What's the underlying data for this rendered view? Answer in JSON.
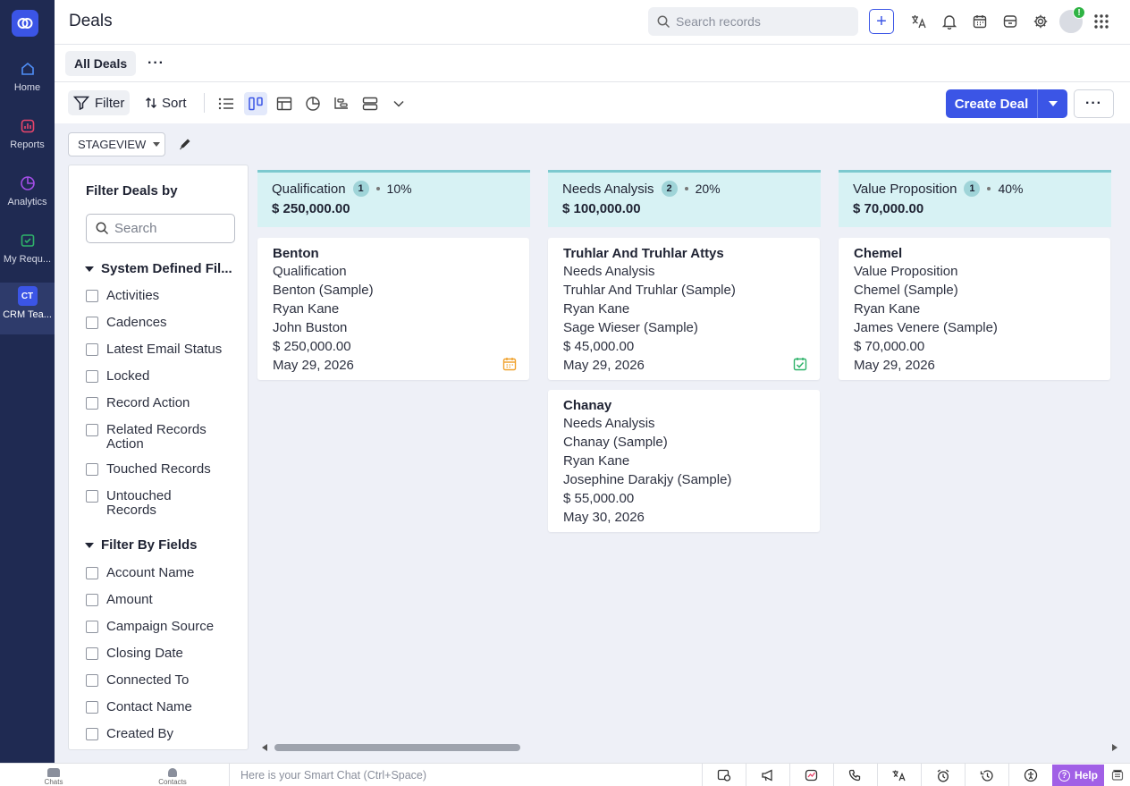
{
  "app": {
    "title": "Deals"
  },
  "rail": {
    "items": [
      {
        "label": "Home"
      },
      {
        "label": "Reports"
      },
      {
        "label": "Analytics"
      },
      {
        "label": "My Requ..."
      },
      {
        "label": "CRM Tea...",
        "badge": "CT"
      }
    ]
  },
  "header": {
    "search_placeholder": "Search records",
    "notification_badge": "!"
  },
  "tabs": {
    "all_deals": "All Deals"
  },
  "toolbar": {
    "filter_label": "Filter",
    "sort_label": "Sort",
    "create_label": "Create Deal"
  },
  "view": {
    "stageview_label": "STAGEVIEW"
  },
  "filter_panel": {
    "title": "Filter Deals by",
    "search_placeholder": "Search",
    "system_section": "System Defined Fil...",
    "system_items": [
      "Activities",
      "Cadences",
      "Latest Email Status",
      "Locked",
      "Record Action",
      "Related Records Action",
      "Touched Records",
      "Untouched Records"
    ],
    "fields_section": "Filter By Fields",
    "field_items": [
      "Account Name",
      "Amount",
      "Campaign Source",
      "Closing Date",
      "Connected To",
      "Contact Name",
      "Created By"
    ]
  },
  "columns": [
    {
      "name": "Qualification",
      "count": "1",
      "percent": "10%",
      "total": "$ 250,000.00"
    },
    {
      "name": "Needs Analysis",
      "count": "2",
      "percent": "20%",
      "total": "$ 100,000.00"
    },
    {
      "name": "Value Proposition",
      "count": "1",
      "percent": "40%",
      "total": "$ 70,000.00"
    }
  ],
  "cards": {
    "benton": {
      "name": "Benton",
      "stage": "Qualification",
      "account": "Benton (Sample)",
      "owner": "Ryan Kane",
      "contact": "John Buston",
      "amount": "$ 250,000.00",
      "date": "May 29, 2026",
      "icon": "calendar-icon"
    },
    "truhlar": {
      "name": "Truhlar And Truhlar Attys",
      "stage": "Needs Analysis",
      "account": "Truhlar And Truhlar (Sample)",
      "owner": "Ryan Kane",
      "contact": "Sage Wieser (Sample)",
      "amount": "$ 45,000.00",
      "date": "May 29, 2026",
      "icon": "task-check-icon"
    },
    "chanay": {
      "name": "Chanay",
      "stage": "Needs Analysis",
      "account": "Chanay (Sample)",
      "owner": "Ryan Kane",
      "contact": "Josephine Darakjy (Sample)",
      "amount": "$ 55,000.00",
      "date": "May 30, 2026"
    },
    "chemel": {
      "name": "Chemel",
      "stage": "Value Proposition",
      "account": "Chemel (Sample)",
      "owner": "Ryan Kane",
      "contact": "James Venere (Sample)",
      "amount": "$ 70,000.00",
      "date": "May 29, 2026"
    }
  },
  "bottom": {
    "chats": "Chats",
    "contacts": "Contacts",
    "smart_chat": "Here is your Smart Chat (Ctrl+Space)",
    "help": "Help"
  },
  "colors": {
    "accent": "#3b55e6",
    "rail": "#1f2a52",
    "column_header": "#d7f2f4",
    "help": "#a160e6"
  }
}
